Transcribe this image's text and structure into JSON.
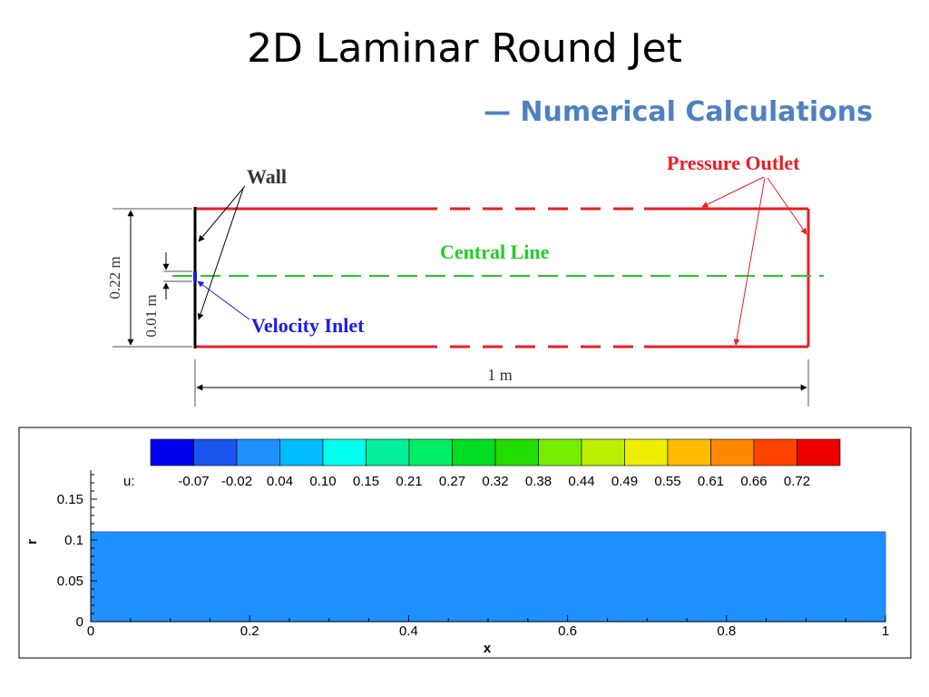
{
  "slide": {
    "title": "2D Laminar Round Jet",
    "subtitle": "— Numerical Calculations"
  },
  "schematic": {
    "labels": {
      "wall": "Wall",
      "pressure_outlet": "Pressure Outlet",
      "central_line": "Central Line",
      "velocity_inlet": "Velocity Inlet",
      "height_dim": "0.22 m",
      "inlet_dim": "0.01 m",
      "length_dim": "1 m"
    },
    "colors": {
      "outlet": "#ee1c24",
      "central_line": "#22cc22",
      "inlet": "#1a1aee",
      "wall": "#000000"
    }
  },
  "chart_data": {
    "type": "heatmap",
    "variable_label": "u:",
    "xlabel": "x",
    "ylabel": "r",
    "xlim": [
      0,
      1
    ],
    "ylim": [
      0,
      0.18
    ],
    "x_ticks": [
      "0",
      "0.2",
      "0.4",
      "0.6",
      "0.8",
      "1"
    ],
    "y_ticks": [
      "0",
      "0.05",
      "0.1",
      "0.15"
    ],
    "x_tick_values": [
      0,
      0.2,
      0.4,
      0.6,
      0.8,
      1
    ],
    "y_tick_values": [
      0,
      0.05,
      0.1,
      0.15
    ],
    "domain_extent": {
      "x": [
        0,
        1
      ],
      "r": [
        0,
        0.11
      ]
    },
    "field_level": "-0.02",
    "field_color": "#1e90ff",
    "colorbar": {
      "levels": [
        "-0.07",
        "-0.02",
        "0.04",
        "0.10",
        "0.15",
        "0.21",
        "0.27",
        "0.32",
        "0.38",
        "0.44",
        "0.49",
        "0.55",
        "0.61",
        "0.66",
        "0.72"
      ],
      "colors": [
        "#0000ee",
        "#1a55ee",
        "#1e90ff",
        "#00bbff",
        "#00ffee",
        "#00ee99",
        "#00ee66",
        "#00dd22",
        "#22dd00",
        "#77ee00",
        "#bbee00",
        "#eeee00",
        "#ffbb00",
        "#ff8800",
        "#ff4400",
        "#ee0000"
      ]
    }
  }
}
